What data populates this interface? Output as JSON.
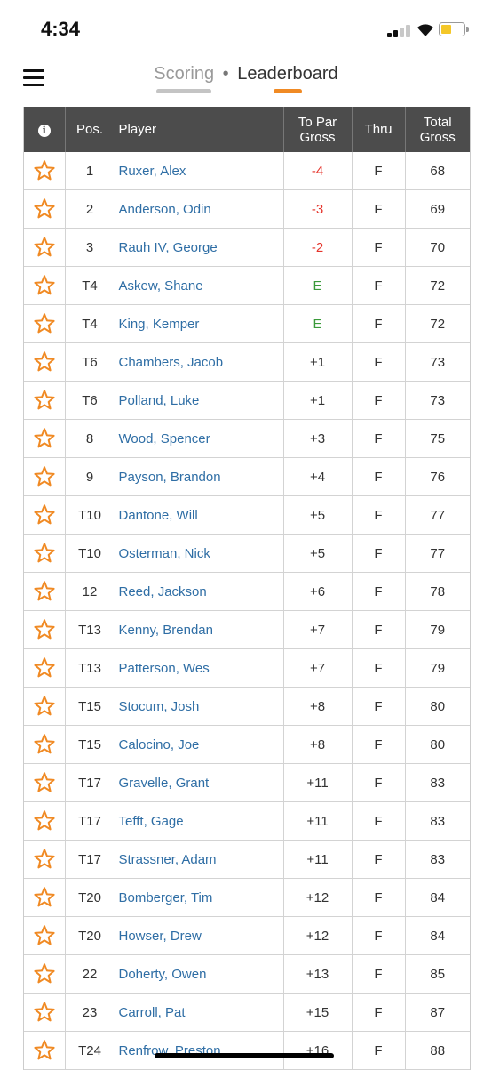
{
  "status": {
    "time": "4:34"
  },
  "nav": {
    "tab_scoring": "Scoring",
    "separator": "•",
    "tab_leaderboard": "Leaderboard"
  },
  "table": {
    "headers": {
      "info": "i",
      "pos": "Pos.",
      "player": "Player",
      "to_par_line1": "To Par",
      "to_par_line2": "Gross",
      "thru": "Thru",
      "total_line1": "Total",
      "total_line2": "Gross"
    },
    "rows": [
      {
        "pos": "1",
        "player": "Ruxer, Alex",
        "to_par": "-4",
        "thru": "F",
        "total": "68"
      },
      {
        "pos": "2",
        "player": "Anderson, Odin",
        "to_par": "-3",
        "thru": "F",
        "total": "69"
      },
      {
        "pos": "3",
        "player": "Rauh IV, George",
        "to_par": "-2",
        "thru": "F",
        "total": "70"
      },
      {
        "pos": "T4",
        "player": "Askew, Shane",
        "to_par": "E",
        "thru": "F",
        "total": "72"
      },
      {
        "pos": "T4",
        "player": "King, Kemper",
        "to_par": "E",
        "thru": "F",
        "total": "72"
      },
      {
        "pos": "T6",
        "player": "Chambers, Jacob",
        "to_par": "+1",
        "thru": "F",
        "total": "73"
      },
      {
        "pos": "T6",
        "player": "Polland, Luke",
        "to_par": "+1",
        "thru": "F",
        "total": "73"
      },
      {
        "pos": "8",
        "player": "Wood, Spencer",
        "to_par": "+3",
        "thru": "F",
        "total": "75"
      },
      {
        "pos": "9",
        "player": "Payson, Brandon",
        "to_par": "+4",
        "thru": "F",
        "total": "76"
      },
      {
        "pos": "T10",
        "player": "Dantone, Will",
        "to_par": "+5",
        "thru": "F",
        "total": "77"
      },
      {
        "pos": "T10",
        "player": "Osterman, Nick",
        "to_par": "+5",
        "thru": "F",
        "total": "77"
      },
      {
        "pos": "12",
        "player": "Reed, Jackson",
        "to_par": "+6",
        "thru": "F",
        "total": "78"
      },
      {
        "pos": "T13",
        "player": "Kenny, Brendan",
        "to_par": "+7",
        "thru": "F",
        "total": "79"
      },
      {
        "pos": "T13",
        "player": "Patterson, Wes",
        "to_par": "+7",
        "thru": "F",
        "total": "79"
      },
      {
        "pos": "T15",
        "player": "Stocum, Josh",
        "to_par": "+8",
        "thru": "F",
        "total": "80"
      },
      {
        "pos": "T15",
        "player": "Calocino, Joe",
        "to_par": "+8",
        "thru": "F",
        "total": "80"
      },
      {
        "pos": "T17",
        "player": "Gravelle, Grant",
        "to_par": "+11",
        "thru": "F",
        "total": "83"
      },
      {
        "pos": "T17",
        "player": "Tefft, Gage",
        "to_par": "+11",
        "thru": "F",
        "total": "83"
      },
      {
        "pos": "T17",
        "player": "Strassner, Adam",
        "to_par": "+11",
        "thru": "F",
        "total": "83"
      },
      {
        "pos": "T20",
        "player": "Bomberger, Tim",
        "to_par": "+12",
        "thru": "F",
        "total": "84"
      },
      {
        "pos": "T20",
        "player": "Howser, Drew",
        "to_par": "+12",
        "thru": "F",
        "total": "84"
      },
      {
        "pos": "22",
        "player": "Doherty, Owen",
        "to_par": "+13",
        "thru": "F",
        "total": "85"
      },
      {
        "pos": "23",
        "player": "Carroll, Pat",
        "to_par": "+15",
        "thru": "F",
        "total": "87"
      },
      {
        "pos": "T24",
        "player": "Renfrow, Preston",
        "to_par": "+16",
        "thru": "F",
        "total": "88"
      }
    ]
  },
  "colors": {
    "header_bg": "#4c4c4c",
    "accent": "#f08a24",
    "player_link": "#2f6ea5",
    "under_par": "#e5332a",
    "even_par": "#3a9a3a"
  },
  "icons": {
    "menu": "hamburger-menu-icon",
    "info": "info-icon",
    "favorite": "star-outline-icon"
  }
}
